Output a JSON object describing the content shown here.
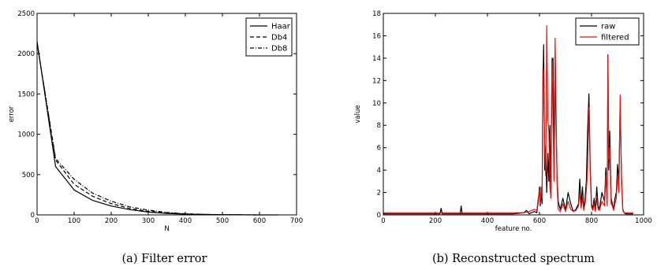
{
  "chart_data": [
    {
      "type": "line",
      "caption": "(a) Filter error",
      "xlabel": "N",
      "ylabel": "error",
      "xlim": [
        0,
        700
      ],
      "ylim": [
        0,
        2500
      ],
      "xticks": [
        "0",
        "100",
        "200",
        "300",
        "400",
        "500",
        "600",
        "700"
      ],
      "yticks": [
        "0",
        "500",
        "1000",
        "1500",
        "2000",
        "2500"
      ],
      "grid": false,
      "legend_position": "top-right",
      "series": [
        {
          "name": "Haar",
          "style": "solid",
          "color": "#000000",
          "x": [
            0,
            50,
            100,
            150,
            200,
            250,
            300,
            350,
            400,
            450,
            500,
            550,
            600,
            650
          ],
          "y": [
            2150,
            600,
            310,
            180,
            110,
            65,
            35,
            18,
            10,
            5,
            3,
            1,
            0,
            0
          ]
        },
        {
          "name": "Db4",
          "style": "dashed",
          "color": "#000000",
          "x": [
            0,
            50,
            100,
            150,
            200,
            250,
            300,
            350,
            400,
            450,
            500,
            550,
            600
          ],
          "y": [
            2140,
            680,
            380,
            230,
            140,
            80,
            45,
            25,
            12,
            6,
            3,
            1,
            0
          ]
        },
        {
          "name": "Db8",
          "style": "dashdot",
          "color": "#000000",
          "x": [
            0,
            50,
            100,
            150,
            200,
            250,
            300,
            350,
            400,
            450,
            500,
            550
          ],
          "y": [
            2130,
            700,
            440,
            270,
            170,
            100,
            60,
            30,
            15,
            7,
            3,
            1
          ]
        }
      ]
    },
    {
      "type": "line",
      "caption": "(b) Reconstructed spectrum",
      "xlabel": "feature no.",
      "ylabel": "value",
      "xlim": [
        0,
        1000
      ],
      "ylim": [
        0,
        18
      ],
      "xticks": [
        "0",
        "200",
        "400",
        "600",
        "800",
        "1000"
      ],
      "yticks": [
        "0",
        "2",
        "4",
        "6",
        "8",
        "10",
        "12",
        "14",
        "16",
        "18"
      ],
      "grid": false,
      "legend_position": "top-right",
      "series": [
        {
          "name": "raw",
          "color": "#000000",
          "x": [
            0,
            100,
            218,
            222,
            226,
            300,
            295,
            299,
            303,
            400,
            500,
            540,
            550,
            560,
            580,
            590,
            595,
            600,
            603,
            606,
            610,
            613,
            616,
            620,
            624,
            628,
            632,
            636,
            640,
            644,
            648,
            652,
            656,
            660,
            664,
            668,
            672,
            676,
            680,
            690,
            700,
            710,
            720,
            730,
            740,
            750,
            755,
            760,
            765,
            770,
            775,
            780,
            785,
            790,
            795,
            800,
            805,
            810,
            815,
            820,
            825,
            830,
            840,
            850,
            855,
            860,
            863,
            866,
            870,
            875,
            880,
            885,
            890,
            895,
            900,
            905,
            910,
            915,
            920,
            925,
            930,
            935,
            940,
            950,
            960
          ],
          "y": [
            0.1,
            0.1,
            0.1,
            0.6,
            0.1,
            0.1,
            0.1,
            0.8,
            0.1,
            0.1,
            0.1,
            0.2,
            0.4,
            0.1,
            0.3,
            0.2,
            1.2,
            2.5,
            0.8,
            2.0,
            1.0,
            11.5,
            15.2,
            4.0,
            6.2,
            2.0,
            5.5,
            3.0,
            8.0,
            1.5,
            13.8,
            14.0,
            3.2,
            14.0,
            7.5,
            3.0,
            1.2,
            0.8,
            0.5,
            1.5,
            0.4,
            2.0,
            1.0,
            0.3,
            0.5,
            1.0,
            3.2,
            0.8,
            2.5,
            0.5,
            1.5,
            3.0,
            7.5,
            10.8,
            4.0,
            1.0,
            0.5,
            1.5,
            0.4,
            2.5,
            0.8,
            0.5,
            2.0,
            1.2,
            4.2,
            1.0,
            14.3,
            4.0,
            7.5,
            1.5,
            1.0,
            0.5,
            1.5,
            2.0,
            4.5,
            3.0,
            10.0,
            3.5,
            0.5,
            0.2,
            0.1,
            0.1,
            0.1,
            0.1,
            0.1
          ]
        },
        {
          "name": "filtered",
          "color": "#e8150f",
          "x": [
            0,
            100,
            200,
            300,
            400,
            500,
            540,
            560,
            580,
            590,
            595,
            600,
            603,
            606,
            610,
            613,
            616,
            620,
            624,
            628,
            632,
            636,
            640,
            644,
            648,
            652,
            656,
            660,
            664,
            668,
            672,
            676,
            680,
            690,
            700,
            710,
            720,
            730,
            740,
            750,
            755,
            760,
            765,
            770,
            775,
            780,
            785,
            790,
            795,
            800,
            805,
            810,
            815,
            820,
            825,
            830,
            840,
            850,
            855,
            860,
            863,
            866,
            870,
            875,
            880,
            885,
            890,
            895,
            900,
            905,
            910,
            915,
            920,
            925,
            930,
            935,
            940,
            950,
            960
          ],
          "y": [
            0.2,
            0.2,
            0.2,
            0.2,
            0.2,
            0.2,
            0.2,
            0.3,
            0.5,
            0.4,
            1.5,
            2.2,
            1.0,
            2.5,
            1.5,
            13.0,
            11.0,
            6.0,
            3.5,
            16.9,
            8.5,
            7.5,
            2.5,
            1.5,
            14.0,
            8.0,
            3.0,
            15.8,
            9.0,
            2.5,
            0.5,
            0.4,
            0.3,
            1.0,
            0.3,
            1.2,
            0.5,
            0.3,
            0.4,
            0.8,
            2.0,
            0.6,
            1.5,
            0.4,
            1.0,
            2.2,
            4.0,
            9.6,
            3.5,
            0.7,
            0.4,
            1.0,
            0.3,
            1.5,
            0.5,
            0.4,
            1.2,
            0.8,
            3.5,
            0.8,
            14.2,
            5.0,
            6.0,
            1.0,
            0.8,
            0.4,
            1.0,
            1.5,
            3.5,
            2.0,
            10.7,
            3.0,
            0.4,
            0.2,
            0.2,
            0.2,
            0.2,
            0.2,
            0.2
          ]
        }
      ]
    }
  ]
}
